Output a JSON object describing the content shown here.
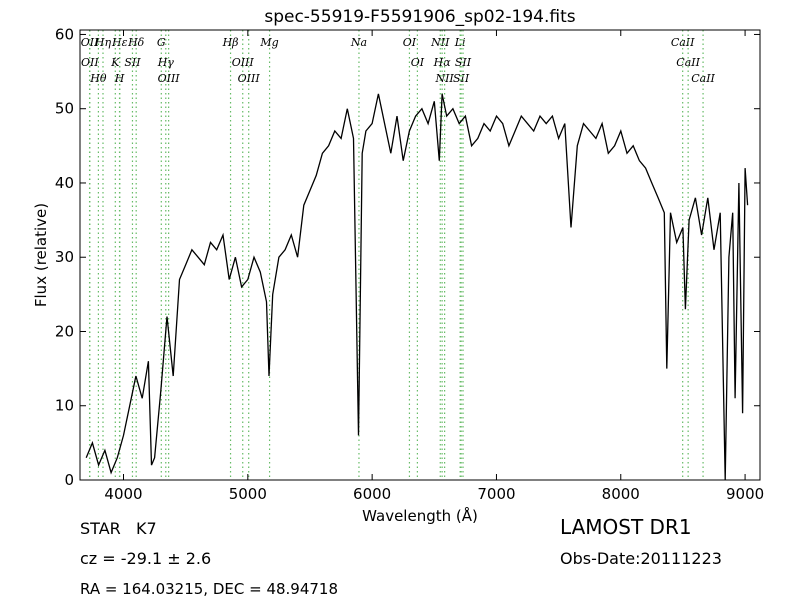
{
  "chart_data": {
    "type": "line",
    "title": "spec-55919-F5591906_sp02-194.fits",
    "xlabel": "Wavelength (Å)",
    "ylabel": "Flux (relative)",
    "xlim": [
      3650,
      9120
    ],
    "ylim": [
      0,
      60.6
    ],
    "xticks": [
      4000,
      5000,
      6000,
      7000,
      8000,
      9000
    ],
    "yticks": [
      0,
      10,
      20,
      30,
      40,
      50,
      60
    ],
    "color": "#000000",
    "line_color": "#66bb66",
    "x": [
      3700,
      3750,
      3800,
      3850,
      3900,
      3950,
      4000,
      4050,
      4100,
      4150,
      4200,
      4225,
      4250,
      4300,
      4350,
      4400,
      4450,
      4500,
      4550,
      4600,
      4650,
      4700,
      4750,
      4800,
      4850,
      4900,
      4950,
      5000,
      5050,
      5100,
      5150,
      5170,
      5200,
      5250,
      5300,
      5350,
      5400,
      5450,
      5500,
      5550,
      5600,
      5650,
      5700,
      5750,
      5800,
      5850,
      5890,
      5920,
      5950,
      6000,
      6050,
      6100,
      6150,
      6200,
      6250,
      6300,
      6350,
      6400,
      6450,
      6500,
      6540,
      6563,
      6600,
      6650,
      6700,
      6750,
      6800,
      6850,
      6900,
      6950,
      7000,
      7050,
      7100,
      7150,
      7200,
      7250,
      7300,
      7350,
      7400,
      7450,
      7500,
      7550,
      7600,
      7650,
      7700,
      7750,
      7800,
      7850,
      7900,
      7950,
      8000,
      8050,
      8100,
      8150,
      8200,
      8250,
      8300,
      8350,
      8370,
      8400,
      8450,
      8500,
      8520,
      8550,
      8600,
      8650,
      8700,
      8750,
      8800,
      8840,
      8870,
      8900,
      8920,
      8950,
      8980,
      9000,
      9020
    ],
    "values": [
      3,
      5,
      2,
      4,
      1,
      3,
      6,
      10,
      14,
      11,
      16,
      2,
      3,
      12,
      22,
      14,
      27,
      29,
      31,
      30,
      29,
      32,
      31,
      33,
      27,
      30,
      26,
      27,
      30,
      28,
      24,
      14,
      25,
      30,
      31,
      33,
      30,
      37,
      39,
      41,
      44,
      45,
      47,
      46,
      50,
      46,
      6,
      44,
      47,
      48,
      52,
      48,
      44,
      49,
      43,
      47,
      49,
      50,
      48,
      51,
      43,
      52,
      49,
      50,
      48,
      49,
      45,
      46,
      48,
      47,
      49,
      48,
      45,
      47,
      49,
      48,
      47,
      49,
      48,
      49,
      46,
      48,
      34,
      45,
      48,
      47,
      46,
      48,
      44,
      45,
      47,
      44,
      45,
      43,
      42,
      40,
      38,
      36,
      15,
      36,
      32,
      34,
      23,
      35,
      38,
      33,
      38,
      31,
      36,
      0,
      30,
      36,
      11,
      40,
      9,
      42,
      37
    ],
    "spectral_lines": [
      {
        "label": "OII",
        "wavelength": 3727
      },
      {
        "label": "OII",
        "wavelength": 3729
      },
      {
        "label": "Hθ",
        "wavelength": 3798
      },
      {
        "label": "Hη",
        "wavelength": 3835
      },
      {
        "label": "K",
        "wavelength": 3934
      },
      {
        "label": "Hε",
        "wavelength": 3970
      },
      {
        "label": "H",
        "wavelength": 3968
      },
      {
        "label": "SII",
        "wavelength": 4072
      },
      {
        "label": "Hδ",
        "wavelength": 4102
      },
      {
        "label": "G",
        "wavelength": 4304
      },
      {
        "label": "Hγ",
        "wavelength": 4340
      },
      {
        "label": "OIII",
        "wavelength": 4363
      },
      {
        "label": "Hβ",
        "wavelength": 4861
      },
      {
        "label": "OIII",
        "wavelength": 4959
      },
      {
        "label": "OIII",
        "wavelength": 5007
      },
      {
        "label": "Mg",
        "wavelength": 5175
      },
      {
        "label": "Na",
        "wavelength": 5894
      },
      {
        "label": "OI",
        "wavelength": 6300
      },
      {
        "label": "OI",
        "wavelength": 6364
      },
      {
        "label": "NII",
        "wavelength": 6548
      },
      {
        "label": "Hα",
        "wavelength": 6563
      },
      {
        "label": "NII",
        "wavelength": 6583
      },
      {
        "label": "Li",
        "wavelength": 6708
      },
      {
        "label": "SII",
        "wavelength": 6716
      },
      {
        "label": "SII",
        "wavelength": 6731
      },
      {
        "label": "CaII",
        "wavelength": 8498
      },
      {
        "label": "CaII",
        "wavelength": 8542
      },
      {
        "label": "CaII",
        "wavelength": 8662
      }
    ],
    "object_class": "STAR   K7",
    "survey": "LAMOST DR1",
    "redshift": "cz = -29.1 ± 2.6",
    "obs_date": "Obs-Date:20111223",
    "coordinates": "RA = 164.03215, DEC = 48.94718"
  }
}
